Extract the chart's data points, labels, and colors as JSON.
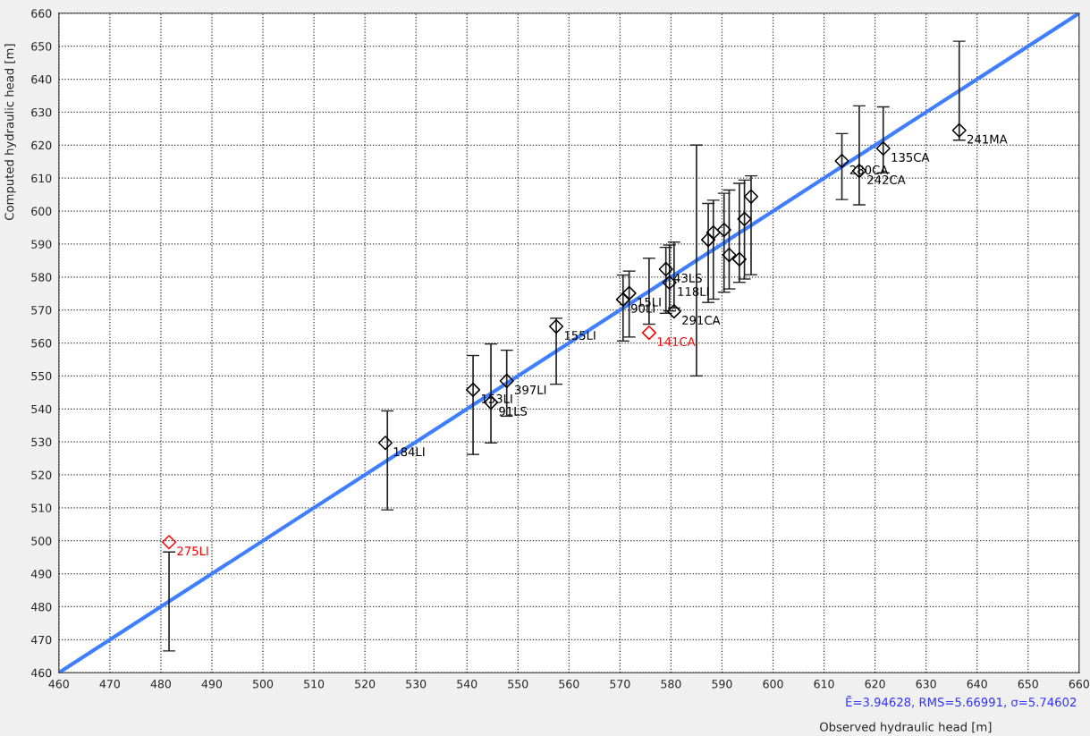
{
  "chart_data": {
    "type": "scatter",
    "xlabel": "Observed hydraulic head [m]",
    "ylabel": "Computed hydraulic head [m]",
    "xlim": [
      460,
      660
    ],
    "ylim": [
      460,
      660
    ],
    "xticks": [
      460,
      470,
      480,
      490,
      500,
      510,
      520,
      530,
      540,
      550,
      560,
      570,
      580,
      590,
      600,
      610,
      620,
      630,
      640,
      650,
      660
    ],
    "yticks": [
      460,
      470,
      480,
      490,
      500,
      510,
      520,
      530,
      540,
      550,
      560,
      570,
      580,
      590,
      600,
      610,
      620,
      630,
      640,
      650,
      660
    ],
    "grid": true,
    "series": [
      {
        "type": "line",
        "color": "#3f7fff",
        "marker": "none",
        "x": [
          460,
          481.6,
          524.4,
          541.2,
          544.7,
          547.8,
          557.5,
          570.6,
          571.8,
          575.7,
          579.0,
          579.7,
          580.6,
          585.0,
          587.3,
          588.3,
          590.4,
          591.4,
          593.4,
          594.4,
          595.7,
          613.5,
          616.9,
          621.6,
          636.5,
          660
        ],
        "values": [
          460,
          481.6,
          524.4,
          541.2,
          544.7,
          547.8,
          557.5,
          570.6,
          571.8,
          575.7,
          579.0,
          579.7,
          580.6,
          585.0,
          587.3,
          588.3,
          590.4,
          591.4,
          593.4,
          594.4,
          595.7,
          613.5,
          616.9,
          621.6,
          636.5,
          660
        ],
        "errors": [
          null,
          15,
          15,
          15,
          15,
          10,
          10,
          10,
          10,
          10,
          10,
          10,
          10,
          35,
          15,
          15,
          15,
          15,
          15,
          15,
          15,
          10,
          15,
          10,
          15,
          null
        ]
      },
      {
        "color": "#000000",
        "marker": "diamond",
        "x": [
          524.0,
          541.2,
          544.7,
          547.8,
          557.5,
          570.6,
          571.8,
          579.0,
          579.7,
          580.6,
          587.3,
          588.3,
          590.4,
          591.4,
          593.4,
          594.4,
          595.7,
          613.5,
          616.9,
          621.6,
          636.5
        ],
        "values": [
          529.7,
          545.8,
          542.0,
          548.5,
          565.0,
          573.2,
          575.1,
          582.4,
          578.3,
          569.6,
          591.3,
          593.5,
          594.3,
          586.7,
          585.4,
          597.6,
          604.4,
          615.2,
          612.2,
          619.0,
          624.5
        ]
      },
      {
        "color": "#ff0000",
        "marker": "diamond",
        "x": [
          481.6,
          575.7
        ],
        "values": [
          499.6,
          563.1
        ]
      }
    ],
    "annotations": [
      {
        "text": "184LI",
        "x": 524.0,
        "y": 529.7
      },
      {
        "text": "153LI",
        "x": 541.2,
        "y": 545.8
      },
      {
        "text": "91LS",
        "x": 544.7,
        "y": 542.0
      },
      {
        "text": "397LI",
        "x": 547.8,
        "y": 548.5
      },
      {
        "text": "155LI",
        "x": 557.5,
        "y": 565.0
      },
      {
        "text": "90LI",
        "x": 570.6,
        "y": 573.2
      },
      {
        "text": "15LI",
        "x": 571.8,
        "y": 575.1
      },
      {
        "text": "43LS",
        "x": 579.0,
        "y": 582.4
      },
      {
        "text": "118LI",
        "x": 579.7,
        "y": 578.3
      },
      {
        "text": "291CA",
        "x": 580.6,
        "y": 569.6
      },
      {
        "text": "280CA",
        "x": 613.5,
        "y": 615.2
      },
      {
        "text": "242CA",
        "x": 616.9,
        "y": 612.2
      },
      {
        "text": "135CA",
        "x": 621.6,
        "y": 619.0
      },
      {
        "text": "241MA",
        "x": 636.5,
        "y": 624.5
      },
      {
        "text": "275LI",
        "x": 481.6,
        "y": 499.6
      },
      {
        "text": "141CA",
        "x": 575.7,
        "y": 563.1
      },
      "Ē=3.94628, RMS=5.66991, σ=5.74602"
    ]
  }
}
